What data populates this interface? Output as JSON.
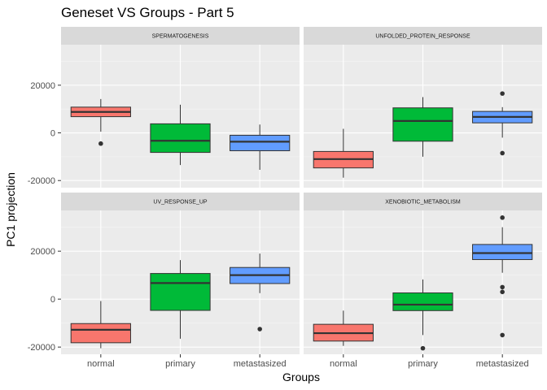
{
  "title": "Geneset VS Groups - Part 5",
  "xlabel": "Groups",
  "ylabel": "PC1 projection",
  "chart_data": {
    "type": "boxplot",
    "title": "Geneset VS Groups - Part 5",
    "xlabel": "Groups",
    "ylabel": "PC1 projection",
    "categories": [
      "normal",
      "primary",
      "metastasized"
    ],
    "colors": {
      "normal": "#F8766D",
      "primary": "#00BA38",
      "metastasized": "#619CFF"
    },
    "y_ticks": [
      -20000,
      0,
      20000
    ],
    "y_tick_labels": [
      "-20000",
      "0",
      "20000"
    ],
    "ylim": [
      -23000,
      37000
    ],
    "facet_rows": 2,
    "facet_cols": 2,
    "panels": [
      {
        "name": "SPERMATOGENESIS",
        "boxes": [
          {
            "group": "normal",
            "lower": 500,
            "q1": 6800,
            "median": 8800,
            "q3": 10800,
            "upper": 14200,
            "outliers": [
              -4500
            ]
          },
          {
            "group": "primary",
            "lower": -13500,
            "q1": -8200,
            "median": -3300,
            "q3": 3800,
            "upper": 11800,
            "outliers": []
          },
          {
            "group": "metastasized",
            "lower": -15500,
            "q1": -7500,
            "median": -3700,
            "q3": -1000,
            "upper": 3500,
            "outliers": []
          }
        ]
      },
      {
        "name": "UNFOLDED_PROTEIN_RESPONSE",
        "boxes": [
          {
            "group": "normal",
            "lower": -18800,
            "q1": -14700,
            "median": -11000,
            "q3": -7800,
            "upper": 1700,
            "outliers": []
          },
          {
            "group": "primary",
            "lower": -10000,
            "q1": -3500,
            "median": 5000,
            "q3": 10500,
            "upper": 15000,
            "outliers": []
          },
          {
            "group": "metastasized",
            "lower": -2000,
            "q1": 4200,
            "median": 6700,
            "q3": 9000,
            "upper": 10800,
            "outliers": [
              16500,
              -8500
            ]
          }
        ]
      },
      {
        "name": "UV_RESPONSE_UP",
        "boxes": [
          {
            "group": "normal",
            "lower": -20500,
            "q1": -18200,
            "median": -12800,
            "q3": -10200,
            "upper": -800,
            "outliers": []
          },
          {
            "group": "primary",
            "lower": -16500,
            "q1": -4700,
            "median": 6700,
            "q3": 10700,
            "upper": 16300,
            "outliers": []
          },
          {
            "group": "metastasized",
            "lower": 2500,
            "q1": 6500,
            "median": 10000,
            "q3": 13200,
            "upper": 19000,
            "outliers": [
              -12500
            ]
          }
        ]
      },
      {
        "name": "XENOBIOTIC_METABOLISM",
        "boxes": [
          {
            "group": "normal",
            "lower": -19500,
            "q1": -17500,
            "median": -14200,
            "q3": -10500,
            "upper": -4800,
            "outliers": []
          },
          {
            "group": "primary",
            "lower": -15000,
            "q1": -4800,
            "median": -2300,
            "q3": 2600,
            "upper": 8200,
            "outliers": [
              -20500
            ]
          },
          {
            "group": "metastasized",
            "lower": 11000,
            "q1": 16500,
            "median": 19200,
            "q3": 22800,
            "upper": 30000,
            "outliers": [
              34000,
              5000,
              3000,
              -15000
            ]
          }
        ]
      }
    ]
  }
}
